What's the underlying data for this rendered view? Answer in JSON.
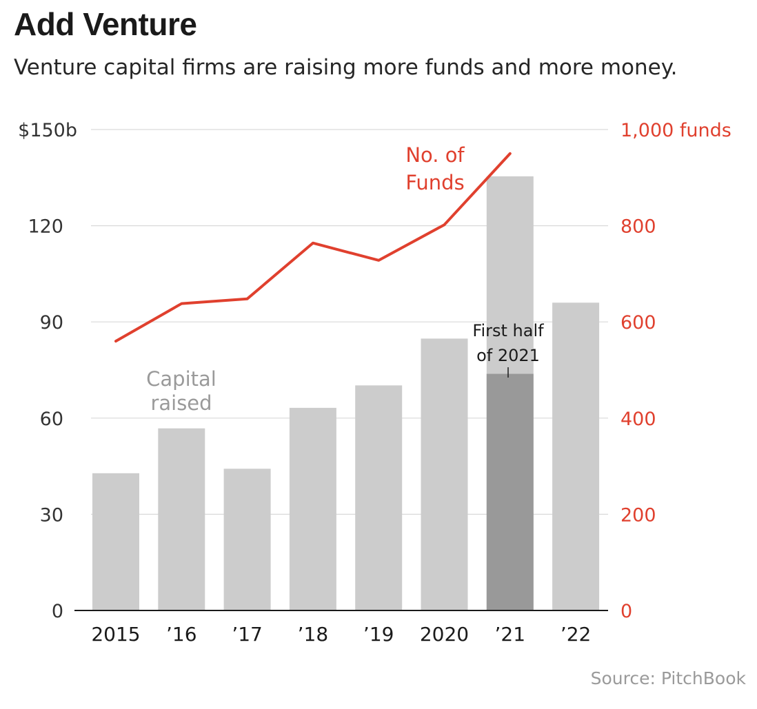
{
  "title": "Add Venture",
  "subtitle": "Venture capital firms are raising more funds and more money.",
  "source": {
    "label": "Source:",
    "name": "PitchBook"
  },
  "colors": {
    "bar": "#cccccc",
    "bar_highlight": "#999999",
    "line": "#e0402e",
    "grid": "#d9d9d9",
    "axis": "#1a1a1a",
    "left_tick_text": "#333333",
    "right_tick_text": "#e0402e",
    "bar_label_text": "#9a9a9a"
  },
  "chart_data": {
    "type": "bar",
    "categories": [
      "2015",
      "’16",
      "’17",
      "’18",
      "’19",
      "2020",
      "’21",
      "’22"
    ],
    "series": [
      {
        "name": "Capital raised",
        "axis": "left",
        "chart": "bar",
        "values": [
          42.8,
          56.8,
          44.2,
          63.2,
          70.2,
          84.8,
          135.4,
          96.0
        ]
      },
      {
        "name": "No. of Funds",
        "axis": "right",
        "chart": "line",
        "values": [
          560,
          638,
          648,
          764,
          728,
          802,
          950,
          null
        ]
      }
    ],
    "highlight": {
      "category_index": 6,
      "name": "First half of 2021",
      "value": 73.8
    },
    "left_axis": {
      "ylim": [
        0,
        150
      ],
      "ticks": [
        0,
        30,
        60,
        90,
        120,
        150
      ],
      "tick_labels": [
        "0",
        "30",
        "60",
        "90",
        "120",
        "$150b"
      ]
    },
    "right_axis": {
      "ylim": [
        0,
        1000
      ],
      "ticks": [
        0,
        200,
        400,
        600,
        800,
        1000
      ],
      "tick_labels": [
        "0",
        "200",
        "400",
        "600",
        "800",
        "1,000 funds"
      ]
    },
    "annotations": {
      "bars_label": [
        "Capital",
        "raised"
      ],
      "line_label": [
        "No. of",
        "Funds"
      ],
      "highlight_label": [
        "First half",
        "of 2021"
      ]
    },
    "grid": true
  }
}
